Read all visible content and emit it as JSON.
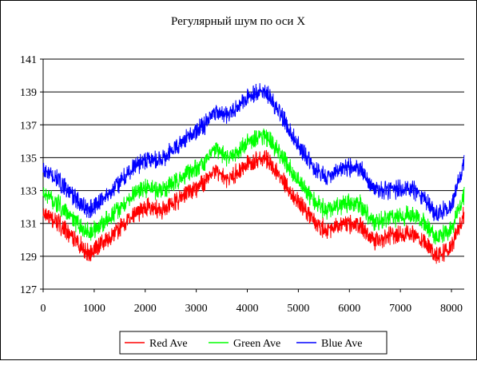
{
  "chart_data": {
    "type": "line",
    "title": "Регулярный шум по оси X",
    "xlabel": "",
    "ylabel": "",
    "xlim": [
      0,
      8250
    ],
    "ylim": [
      127,
      141
    ],
    "x_ticks": [
      0,
      1000,
      2000,
      3000,
      4000,
      5000,
      6000,
      7000,
      8000
    ],
    "y_ticks": [
      127,
      129,
      131,
      133,
      135,
      137,
      139,
      141
    ],
    "grid": "horizontal",
    "legend_position": "bottom",
    "series": [
      {
        "name": "Red Ave",
        "color": "#ff0000",
        "x": [
          0,
          300,
          600,
          900,
          1200,
          1500,
          1800,
          2000,
          2300,
          2600,
          2900,
          3200,
          3400,
          3600,
          3900,
          4200,
          4400,
          4700,
          5000,
          5300,
          5600,
          5900,
          6200,
          6500,
          6800,
          7100,
          7400,
          7700,
          8000,
          8250
        ],
        "values": [
          131.6,
          131.0,
          130.0,
          129.2,
          129.9,
          130.7,
          131.6,
          132.0,
          131.8,
          132.3,
          133.0,
          133.6,
          134.2,
          133.6,
          134.3,
          135.0,
          134.8,
          133.6,
          132.3,
          131.2,
          130.5,
          131.0,
          130.9,
          129.9,
          130.2,
          130.4,
          130.1,
          129.1,
          129.5,
          131.6
        ],
        "noise": 0.8
      },
      {
        "name": "Green Ave",
        "color": "#00ff00",
        "x": [
          0,
          300,
          600,
          900,
          1200,
          1500,
          1800,
          2000,
          2300,
          2600,
          2900,
          3200,
          3400,
          3600,
          3900,
          4200,
          4400,
          4700,
          5000,
          5300,
          5600,
          5900,
          6200,
          6500,
          6800,
          7100,
          7400,
          7700,
          8000,
          8250
        ],
        "values": [
          132.8,
          132.2,
          131.2,
          130.4,
          131.1,
          131.9,
          132.8,
          133.2,
          133.0,
          133.5,
          134.2,
          134.8,
          135.6,
          134.9,
          135.6,
          136.4,
          136.2,
          135.0,
          133.6,
          132.4,
          131.7,
          132.2,
          132.2,
          131.0,
          131.3,
          131.5,
          131.3,
          130.2,
          130.6,
          132.8
        ],
        "noise": 0.8
      },
      {
        "name": "Blue Ave",
        "color": "#0000ff",
        "x": [
          0,
          300,
          600,
          900,
          1200,
          1500,
          1800,
          2000,
          2300,
          2600,
          2900,
          3200,
          3400,
          3600,
          3900,
          4200,
          4400,
          4700,
          5000,
          5300,
          5600,
          5900,
          6200,
          6500,
          6800,
          7100,
          7400,
          7700,
          8000,
          8250
        ],
        "values": [
          134.2,
          133.6,
          132.6,
          131.8,
          132.6,
          133.5,
          134.5,
          134.9,
          134.9,
          135.6,
          136.4,
          137.1,
          137.8,
          137.5,
          138.4,
          139.1,
          138.8,
          137.4,
          135.7,
          134.4,
          133.7,
          134.4,
          134.4,
          133.0,
          133.0,
          133.2,
          132.8,
          131.6,
          132.0,
          134.8
        ],
        "noise": 0.8
      }
    ]
  }
}
